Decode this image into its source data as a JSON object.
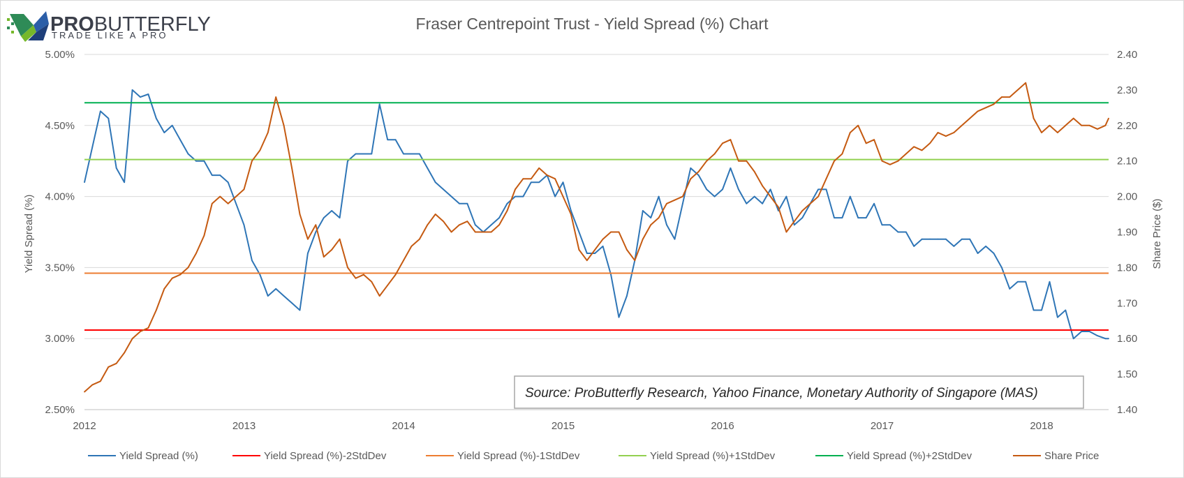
{
  "logo": {
    "brand_bold": "PRO",
    "brand_light": "BUTTERFLY",
    "tagline": "TRADE LIKE A PRO"
  },
  "source_note": "Source: ProButterfly Research, Yahoo Finance, Monetary Authority of Singapore (MAS)",
  "chart_data": {
    "type": "line",
    "title": "Fraser Centrepoint Trust - Yield Spread (%) Chart",
    "ylabel": "Yield Spread (%)",
    "y2label": "Share Price ($)",
    "xlim": [
      2012,
      2018.42
    ],
    "ylim": [
      2.5,
      5.0
    ],
    "y2lim": [
      1.4,
      2.4
    ],
    "x_ticks": [
      "2012",
      "2013",
      "2014",
      "2015",
      "2016",
      "2017",
      "2018"
    ],
    "y_ticks": [
      "2.50%",
      "3.00%",
      "3.50%",
      "4.00%",
      "4.50%",
      "5.00%"
    ],
    "y2_ticks": [
      "1.40",
      "1.50",
      "1.60",
      "1.70",
      "1.80",
      "1.90",
      "2.00",
      "2.10",
      "2.20",
      "2.30",
      "2.40"
    ],
    "legend_position": "bottom",
    "series": [
      {
        "name": "Yield Spread (%)",
        "axis": "left",
        "color": "#2e75b6",
        "x": [
          2012.0,
          2012.05,
          2012.1,
          2012.15,
          2012.2,
          2012.25,
          2012.3,
          2012.35,
          2012.4,
          2012.45,
          2012.5,
          2012.55,
          2012.6,
          2012.65,
          2012.7,
          2012.75,
          2012.8,
          2012.85,
          2012.9,
          2012.95,
          2013.0,
          2013.05,
          2013.1,
          2013.15,
          2013.2,
          2013.25,
          2013.3,
          2013.35,
          2013.4,
          2013.45,
          2013.5,
          2013.55,
          2013.6,
          2013.65,
          2013.7,
          2013.75,
          2013.8,
          2013.85,
          2013.9,
          2013.95,
          2014.0,
          2014.05,
          2014.1,
          2014.15,
          2014.2,
          2014.25,
          2014.3,
          2014.35,
          2014.4,
          2014.45,
          2014.5,
          2014.55,
          2014.6,
          2014.65,
          2014.7,
          2014.75,
          2014.8,
          2014.85,
          2014.9,
          2014.95,
          2015.0,
          2015.05,
          2015.1,
          2015.15,
          2015.2,
          2015.25,
          2015.3,
          2015.35,
          2015.4,
          2015.45,
          2015.5,
          2015.55,
          2015.6,
          2015.65,
          2015.7,
          2015.75,
          2015.8,
          2015.85,
          2015.9,
          2015.95,
          2016.0,
          2016.05,
          2016.1,
          2016.15,
          2016.2,
          2016.25,
          2016.3,
          2016.35,
          2016.4,
          2016.45,
          2016.5,
          2016.55,
          2016.6,
          2016.65,
          2016.7,
          2016.75,
          2016.8,
          2016.85,
          2016.9,
          2016.95,
          2017.0,
          2017.05,
          2017.1,
          2017.15,
          2017.2,
          2017.25,
          2017.3,
          2017.35,
          2017.4,
          2017.45,
          2017.5,
          2017.55,
          2017.6,
          2017.65,
          2017.7,
          2017.75,
          2017.8,
          2017.85,
          2017.9,
          2017.95,
          2018.0,
          2018.05,
          2018.1,
          2018.15,
          2018.2,
          2018.25,
          2018.3,
          2018.35,
          2018.4,
          2018.42
        ],
        "values": [
          4.1,
          4.35,
          4.6,
          4.55,
          4.2,
          4.1,
          4.75,
          4.7,
          4.72,
          4.55,
          4.45,
          4.5,
          4.4,
          4.3,
          4.25,
          4.25,
          4.15,
          4.15,
          4.1,
          3.95,
          3.8,
          3.55,
          3.45,
          3.3,
          3.35,
          3.3,
          3.25,
          3.2,
          3.6,
          3.75,
          3.85,
          3.9,
          3.85,
          4.25,
          4.3,
          4.3,
          4.3,
          4.65,
          4.4,
          4.4,
          4.3,
          4.3,
          4.3,
          4.2,
          4.1,
          4.05,
          4.0,
          3.95,
          3.95,
          3.8,
          3.75,
          3.8,
          3.85,
          3.95,
          4.0,
          4.0,
          4.1,
          4.1,
          4.15,
          4.0,
          4.1,
          3.9,
          3.75,
          3.6,
          3.6,
          3.65,
          3.45,
          3.15,
          3.3,
          3.55,
          3.9,
          3.85,
          4.0,
          3.8,
          3.7,
          3.95,
          4.2,
          4.15,
          4.05,
          4.0,
          4.05,
          4.2,
          4.05,
          3.95,
          4.0,
          3.95,
          4.05,
          3.9,
          4.0,
          3.8,
          3.85,
          3.95,
          4.05,
          4.05,
          3.85,
          3.85,
          4.0,
          3.85,
          3.85,
          3.95,
          3.8,
          3.8,
          3.75,
          3.75,
          3.65,
          3.7,
          3.7,
          3.7,
          3.7,
          3.65,
          3.7,
          3.7,
          3.6,
          3.65,
          3.6,
          3.5,
          3.35,
          3.4,
          3.4,
          3.2,
          3.2,
          3.4,
          3.15,
          3.2,
          3.0,
          3.05,
          3.05,
          3.02,
          3.0,
          3.0
        ]
      },
      {
        "name": "Yield Spread (%)-2StdDev",
        "axis": "left",
        "color": "#ff0000",
        "constant": 3.06
      },
      {
        "name": "Yield Spread (%)-1StdDev",
        "axis": "left",
        "color": "#ed7d31",
        "constant": 3.46
      },
      {
        "name": "Yield Spread (%)+1StdDev",
        "axis": "left",
        "color": "#92d050",
        "constant": 4.26
      },
      {
        "name": "Yield Spread (%)+2StdDev",
        "axis": "left",
        "color": "#00b050",
        "constant": 4.66
      },
      {
        "name": "Share Price",
        "axis": "right",
        "color": "#c55a11",
        "x": [
          2012.0,
          2012.05,
          2012.1,
          2012.15,
          2012.2,
          2012.25,
          2012.3,
          2012.35,
          2012.4,
          2012.45,
          2012.5,
          2012.55,
          2012.6,
          2012.65,
          2012.7,
          2012.75,
          2012.8,
          2012.85,
          2012.9,
          2012.95,
          2013.0,
          2013.05,
          2013.1,
          2013.15,
          2013.2,
          2013.25,
          2013.3,
          2013.35,
          2013.4,
          2013.45,
          2013.5,
          2013.55,
          2013.6,
          2013.65,
          2013.7,
          2013.75,
          2013.8,
          2013.85,
          2013.9,
          2013.95,
          2014.0,
          2014.05,
          2014.1,
          2014.15,
          2014.2,
          2014.25,
          2014.3,
          2014.35,
          2014.4,
          2014.45,
          2014.5,
          2014.55,
          2014.6,
          2014.65,
          2014.7,
          2014.75,
          2014.8,
          2014.85,
          2014.9,
          2014.95,
          2015.0,
          2015.05,
          2015.1,
          2015.15,
          2015.2,
          2015.25,
          2015.3,
          2015.35,
          2015.4,
          2015.45,
          2015.5,
          2015.55,
          2015.6,
          2015.65,
          2015.7,
          2015.75,
          2015.8,
          2015.85,
          2015.9,
          2015.95,
          2016.0,
          2016.05,
          2016.1,
          2016.15,
          2016.2,
          2016.25,
          2016.3,
          2016.35,
          2016.4,
          2016.45,
          2016.5,
          2016.55,
          2016.6,
          2016.65,
          2016.7,
          2016.75,
          2016.8,
          2016.85,
          2016.9,
          2016.95,
          2017.0,
          2017.05,
          2017.1,
          2017.15,
          2017.2,
          2017.25,
          2017.3,
          2017.35,
          2017.4,
          2017.45,
          2017.5,
          2017.55,
          2017.6,
          2017.65,
          2017.7,
          2017.75,
          2017.8,
          2017.85,
          2017.9,
          2017.95,
          2018.0,
          2018.05,
          2018.1,
          2018.15,
          2018.2,
          2018.25,
          2018.3,
          2018.35,
          2018.4,
          2018.42
        ],
        "values": [
          1.45,
          1.47,
          1.48,
          1.52,
          1.53,
          1.56,
          1.6,
          1.62,
          1.63,
          1.68,
          1.74,
          1.77,
          1.78,
          1.8,
          1.84,
          1.89,
          1.98,
          2.0,
          1.98,
          2.0,
          2.02,
          2.1,
          2.13,
          2.18,
          2.28,
          2.2,
          2.08,
          1.95,
          1.88,
          1.92,
          1.83,
          1.85,
          1.88,
          1.8,
          1.77,
          1.78,
          1.76,
          1.72,
          1.75,
          1.78,
          1.82,
          1.86,
          1.88,
          1.92,
          1.95,
          1.93,
          1.9,
          1.92,
          1.93,
          1.9,
          1.9,
          1.9,
          1.92,
          1.96,
          2.02,
          2.05,
          2.05,
          2.08,
          2.06,
          2.05,
          2.0,
          1.95,
          1.85,
          1.82,
          1.85,
          1.88,
          1.9,
          1.9,
          1.85,
          1.82,
          1.88,
          1.92,
          1.94,
          1.98,
          1.99,
          2.0,
          2.05,
          2.07,
          2.1,
          2.12,
          2.15,
          2.16,
          2.1,
          2.1,
          2.07,
          2.03,
          2.0,
          1.97,
          1.9,
          1.93,
          1.96,
          1.98,
          2.0,
          2.05,
          2.1,
          2.12,
          2.18,
          2.2,
          2.15,
          2.16,
          2.1,
          2.09,
          2.1,
          2.12,
          2.14,
          2.13,
          2.15,
          2.18,
          2.17,
          2.18,
          2.2,
          2.22,
          2.24,
          2.25,
          2.26,
          2.28,
          2.28,
          2.3,
          2.32,
          2.22,
          2.18,
          2.2,
          2.18,
          2.2,
          2.22,
          2.2,
          2.2,
          2.19,
          2.2,
          2.22
        ]
      }
    ]
  }
}
